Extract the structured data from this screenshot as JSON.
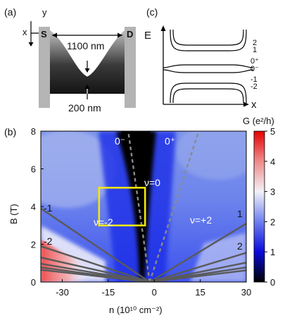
{
  "panel_a": {
    "label": "(a)",
    "axis_x": "x",
    "axis_y": "y",
    "source": "S",
    "drain": "D",
    "width_top": "1100 nm",
    "width_bottom": "200 nm"
  },
  "panel_c": {
    "label": "(c)",
    "ylabel": "E",
    "xlabel": "x",
    "levels": [
      "2",
      "1",
      "0⁺",
      "0⁻",
      "-1",
      "-2"
    ]
  },
  "panel_b": {
    "label": "(b)",
    "colorbar_label": "G (e²/h)",
    "colorbar_ticks": [
      "5",
      "4",
      "3",
      "2",
      "1",
      "0"
    ],
    "annotations": {
      "zero_minus": "0⁻",
      "zero_plus": "0⁺",
      "nu0": "ν=0",
      "num2": "ν=-2",
      "nup2": "ν=+2",
      "left_m1": "-1",
      "left_m2": "-2",
      "right_1": "1",
      "right_2": "2"
    }
  },
  "chart_data": {
    "type": "heatmap",
    "xlabel": "n (10¹⁰ cm⁻²)",
    "ylabel": "B (T)",
    "xlim": [
      -37,
      30
    ],
    "ylim": [
      0,
      8
    ],
    "xticks": [
      -30,
      -15,
      0,
      15,
      30
    ],
    "yticks": [
      0,
      2,
      4,
      6,
      8
    ],
    "colorbar_range": [
      0,
      5
    ],
    "fan_lines_left": [
      {
        "label": "-1",
        "n": -37,
        "B": 3.9
      },
      {
        "label": "-2",
        "n": -37,
        "B": 1.9
      },
      {
        "n": -37,
        "B": 1.3
      },
      {
        "n": -37,
        "B": 0.97
      },
      {
        "n": -37,
        "B": 0.78
      },
      {
        "n": -37,
        "B": 0.65
      }
    ],
    "fan_lines_right": [
      {
        "label": "1",
        "n": 30,
        "B": 3.1
      },
      {
        "label": "2",
        "n": 30,
        "B": 1.55
      },
      {
        "n": 30,
        "B": 1.03
      },
      {
        "n": 30,
        "B": 0.78
      },
      {
        "n": 30,
        "B": 0.62
      }
    ],
    "dashed_lines": [
      {
        "label": "0⁻",
        "n_at_8T": -8.5
      },
      {
        "label": "0⁺",
        "n_at_8T": 14.5
      }
    ],
    "highlight_box": {
      "n": [
        -18,
        -3
      ],
      "B": [
        3.0,
        5.0
      ]
    }
  }
}
